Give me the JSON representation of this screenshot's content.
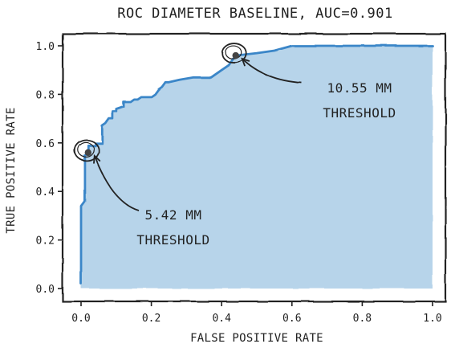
{
  "chart_data": {
    "type": "area",
    "title": "ROC DIAMETER BASELINE, AUC=0.901",
    "xlabel": "FALSE POSITIVE RATE",
    "ylabel": "TRUE POSITIVE RATE",
    "xlim": [
      0.0,
      1.0
    ],
    "ylim": [
      0.0,
      1.0
    ],
    "xticks": [
      "0.0",
      "0.2",
      "0.4",
      "0.6",
      "0.8",
      "1.0"
    ],
    "yticks": [
      "0.0",
      "0.2",
      "0.4",
      "0.6",
      "0.8",
      "1.0"
    ],
    "grid": false,
    "series": [
      {
        "color": "#3a86c8",
        "fill": "#b7d4ea",
        "x": [
          0.0,
          0.0,
          0.01,
          0.01,
          0.02,
          0.02,
          0.04,
          0.04,
          0.06,
          0.06,
          0.07,
          0.08,
          0.09,
          0.09,
          0.1,
          0.1,
          0.12,
          0.12,
          0.14,
          0.15,
          0.16,
          0.17,
          0.2,
          0.21,
          0.22,
          0.23,
          0.24,
          0.25,
          0.28,
          0.32,
          0.37,
          0.4,
          0.42,
          0.43,
          0.44,
          0.5,
          0.55,
          0.6,
          1.0
        ],
        "y": [
          0.02,
          0.34,
          0.36,
          0.55,
          0.56,
          0.59,
          0.59,
          0.6,
          0.6,
          0.67,
          0.68,
          0.7,
          0.7,
          0.73,
          0.73,
          0.74,
          0.75,
          0.77,
          0.77,
          0.78,
          0.78,
          0.79,
          0.79,
          0.8,
          0.82,
          0.83,
          0.85,
          0.85,
          0.86,
          0.87,
          0.87,
          0.9,
          0.92,
          0.94,
          0.96,
          0.97,
          0.98,
          1.0,
          1.0
        ]
      }
    ],
    "annotations": [
      {
        "label_lines": [
          "5.42 MM",
          "THRESHOLD"
        ],
        "point": [
          0.02,
          0.56
        ]
      },
      {
        "label_lines": [
          "10.55 MM",
          "THRESHOLD"
        ],
        "point": [
          0.44,
          0.96
        ]
      }
    ]
  }
}
